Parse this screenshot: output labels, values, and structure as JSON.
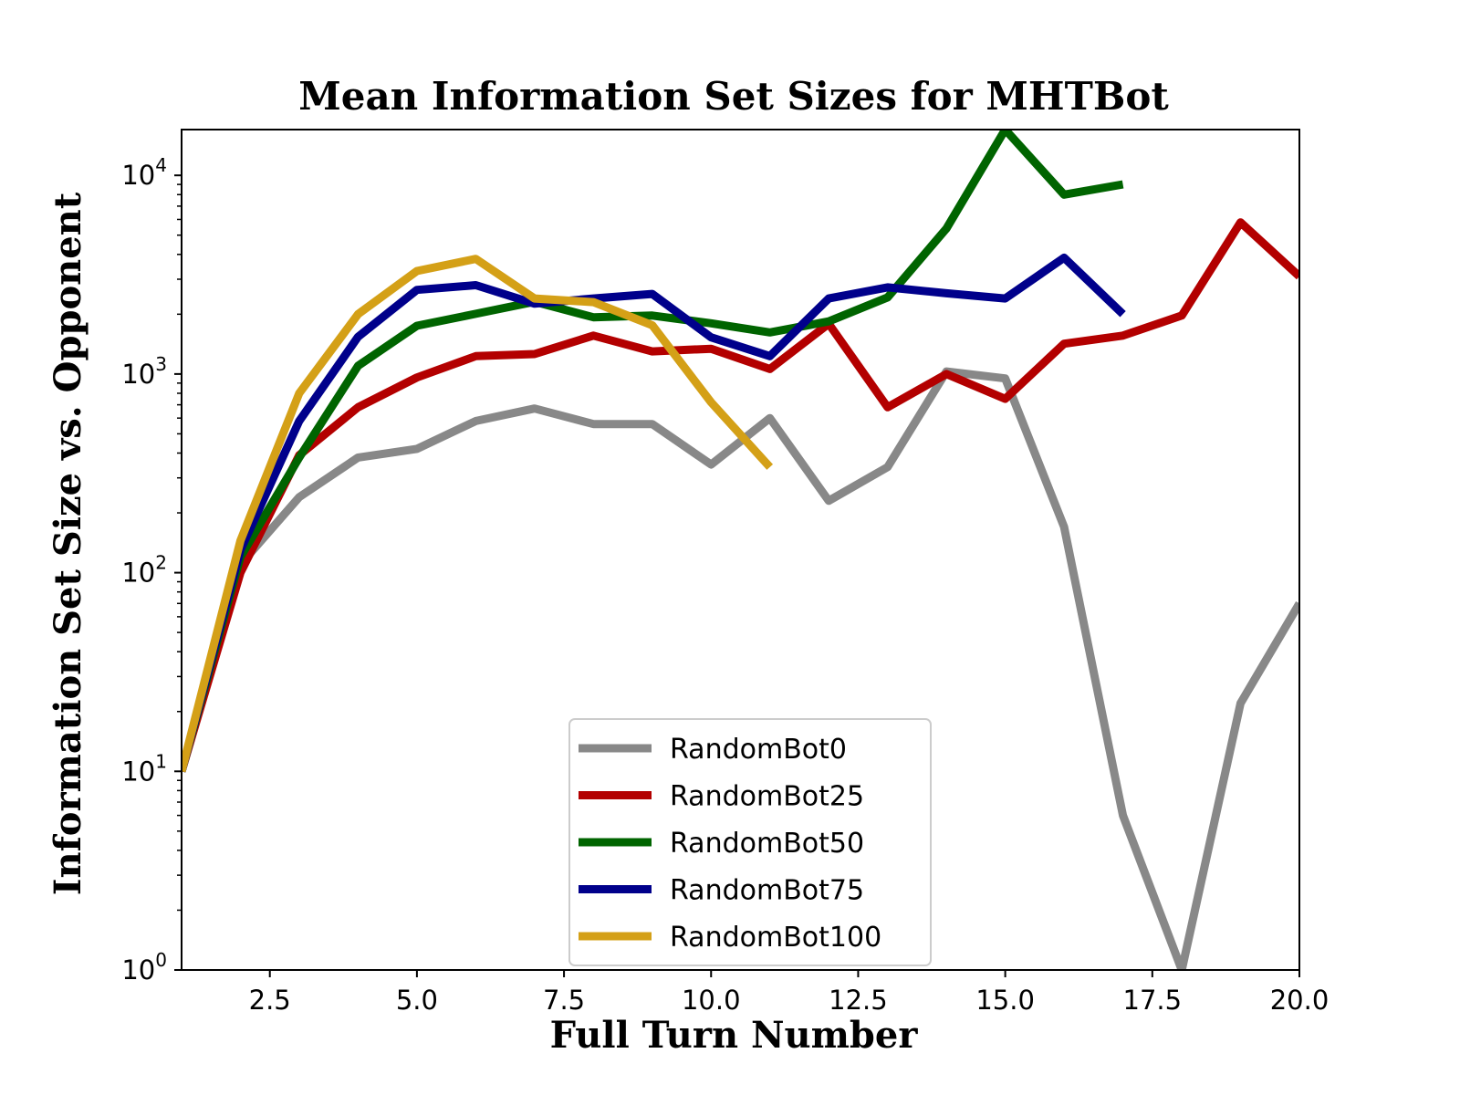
{
  "chart_data": {
    "type": "line",
    "title": "Mean Information Set Sizes for MHTBot",
    "xlabel": "Full Turn Number",
    "ylabel": "Information Set Size vs. Opponent",
    "xlim": [
      1,
      20
    ],
    "ylim": [
      1,
      17000
    ],
    "yscale": "log",
    "grid": false,
    "legend_position": "lower-center",
    "x_ticks": [
      2.5,
      5.0,
      7.5,
      10.0,
      12.5,
      15.0,
      17.5,
      20.0
    ],
    "x_tick_labels": [
      "2.5",
      "5.0",
      "7.5",
      "10.0",
      "12.5",
      "15.0",
      "17.5",
      "20.0"
    ],
    "y_ticks": [
      1,
      10,
      100,
      1000,
      10000
    ],
    "y_tick_labels": [
      {
        "base": "10",
        "exp": "0"
      },
      {
        "base": "10",
        "exp": "1"
      },
      {
        "base": "10",
        "exp": "2"
      },
      {
        "base": "10",
        "exp": "3"
      },
      {
        "base": "10",
        "exp": "4"
      }
    ],
    "series": [
      {
        "name": "RandomBot0",
        "color": "#888888",
        "x": [
          1,
          2,
          3,
          4,
          5,
          6,
          7,
          8,
          9,
          10,
          11,
          12,
          13,
          14,
          15,
          16,
          17,
          18,
          19,
          20
        ],
        "y": [
          10,
          110,
          240,
          380,
          420,
          580,
          670,
          560,
          560,
          350,
          600,
          230,
          340,
          1030,
          950,
          170,
          6,
          1,
          22,
          70
        ]
      },
      {
        "name": "RandomBot25",
        "color": "#b30000",
        "x": [
          1,
          2,
          3,
          4,
          5,
          6,
          7,
          8,
          9,
          10,
          11,
          12,
          13,
          14,
          15,
          16,
          17,
          18,
          19,
          20
        ],
        "y": [
          10,
          100,
          390,
          680,
          960,
          1230,
          1260,
          1560,
          1300,
          1340,
          1060,
          1790,
          680,
          1000,
          750,
          1420,
          1560,
          1970,
          5800,
          3100
        ]
      },
      {
        "name": "RandomBot50",
        "color": "#006400",
        "x": [
          1,
          2,
          3,
          4,
          5,
          6,
          7,
          8,
          9,
          10,
          11,
          12,
          13,
          14,
          15,
          16,
          17
        ],
        "y": [
          10,
          120,
          380,
          1100,
          1750,
          2010,
          2310,
          1930,
          1970,
          1800,
          1620,
          1840,
          2430,
          5400,
          17000,
          8000,
          9000
        ]
      },
      {
        "name": "RandomBot75",
        "color": "#00008b",
        "x": [
          1,
          2,
          3,
          4,
          5,
          6,
          7,
          8,
          9,
          10,
          11,
          12,
          13,
          14,
          15,
          16,
          17
        ],
        "y": [
          10,
          130,
          580,
          1540,
          2650,
          2800,
          2260,
          2400,
          2530,
          1530,
          1230,
          2400,
          2730,
          2550,
          2400,
          3850,
          2000
        ]
      },
      {
        "name": "RandomBot100",
        "color": "#d4a017",
        "x": [
          1,
          2,
          3,
          4,
          5,
          6,
          7,
          8,
          9,
          10,
          11
        ],
        "y": [
          10,
          145,
          800,
          2000,
          3300,
          3800,
          2400,
          2300,
          1760,
          720,
          340
        ]
      }
    ]
  }
}
